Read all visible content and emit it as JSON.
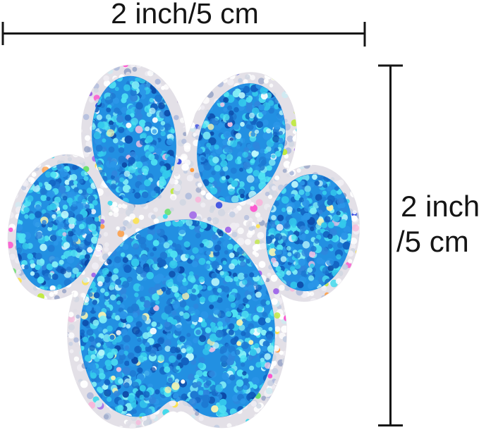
{
  "diagram": {
    "type": "product-size-diagram",
    "subject": "blue glitter paw print sticker",
    "width_dimension": {
      "label": "2 inch/5 cm"
    },
    "height_dimension": {
      "label_line1": "2 inch",
      "label_line2": "/5 cm"
    }
  },
  "colors": {
    "background": "#ffffff",
    "annotation": "#151515",
    "silver_base": "#e3e0e7",
    "blue_base": "#2290e2"
  },
  "glitter_palettes": {
    "silver": [
      {
        "c": "#ffffff",
        "w": 26
      },
      {
        "c": "#f0eef4",
        "w": 16
      },
      {
        "c": "#e0dee6",
        "w": 13
      },
      {
        "c": "#d0d6e2",
        "w": 10
      },
      {
        "c": "#c3cde2",
        "w": 8
      },
      {
        "c": "#aebbdc",
        "w": 6
      },
      {
        "c": "#9aa6c8",
        "w": 4
      },
      {
        "c": "#cfeaf2",
        "w": 4
      },
      {
        "c": "#ffe23c",
        "w": 2.2
      },
      {
        "c": "#bfe93c",
        "w": 1.2
      },
      {
        "c": "#3cd9ec",
        "w": 2.2
      },
      {
        "c": "#ff46cc",
        "w": 1.2
      },
      {
        "c": "#3346e0",
        "w": 1.6
      },
      {
        "c": "#ff9a3c",
        "w": 1.0
      },
      {
        "c": "#9a5ce8",
        "w": 1.2
      },
      {
        "c": "#f7b6da",
        "w": 1.4
      },
      {
        "c": "#66e26a",
        "w": 1.0
      }
    ],
    "blue": [
      {
        "c": "#1e79d2",
        "w": 16
      },
      {
        "c": "#2b96e8",
        "w": 16
      },
      {
        "c": "#1261c0",
        "w": 10
      },
      {
        "c": "#34c9ec",
        "w": 15
      },
      {
        "c": "#4fe2f2",
        "w": 14
      },
      {
        "c": "#83eef6",
        "w": 8
      },
      {
        "c": "#bdf8fc",
        "w": 4
      },
      {
        "c": "#0c4aa8",
        "w": 5
      },
      {
        "c": "#2f86dd",
        "w": 8
      },
      {
        "c": "#f6f3b0",
        "w": 1.5
      },
      {
        "c": "#f4c2e2",
        "w": 1.0
      },
      {
        "c": "#ffffff",
        "w": 1.5
      }
    ]
  }
}
